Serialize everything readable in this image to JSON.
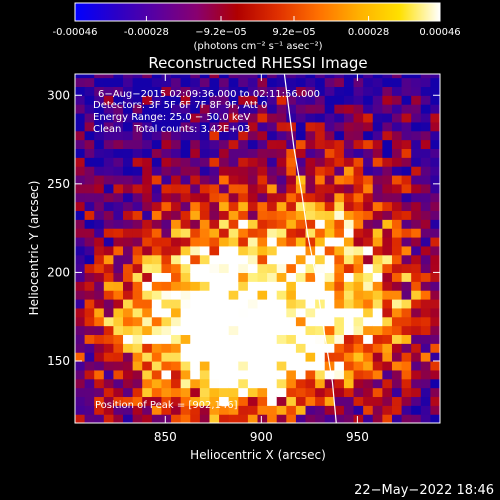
{
  "chart_data": {
    "type": "heatmap",
    "title": "Reconstructed RHESSI Image",
    "xlabel": "Heliocentric X (arcsec)",
    "ylabel": "Heliocentric Y (arcsec)",
    "xlim": [
      803,
      993
    ],
    "ylim": [
      115,
      312
    ],
    "x_ticks": [
      850,
      900,
      950
    ],
    "y_ticks": [
      150,
      200,
      250,
      300
    ],
    "colorbar": {
      "min": -0.00046,
      "max": 0.00046,
      "tick_values": [
        -0.00046,
        -0.00028,
        -9.2e-05,
        9.2e-05,
        0.00028,
        0.00046
      ],
      "tick_labels": [
        "-0.00046",
        "-0.00028",
        "−9.2e−05",
        "9.2e−05",
        "0.00028",
        "0.00046"
      ],
      "unit_label": "(photons cm⁻² s⁻¹ asec⁻²)",
      "colors": [
        "#0000ff",
        "#2a00c8",
        "#5a00a0",
        "#880070",
        "#b00000",
        "#e03000",
        "#ff7000",
        "#ffb000",
        "#ffe000",
        "#ffffff"
      ]
    },
    "annotations": [
      "6−Aug−2015 02:09:36.000 to 02:11:56.000",
      "Detectors: 3F 5F 6F 7F 8F 9F, Att 0",
      "Energy Range: 25.0 − 50.0 keV",
      "Clean    Total counts: 3.42E+03",
      "Position of Peak = [902,146]"
    ],
    "peak": [
      902,
      146
    ],
    "limb": [
      [
        912,
        312
      ],
      [
        914,
        295
      ],
      [
        917,
        270
      ],
      [
        921,
        245
      ],
      [
        924,
        222
      ],
      [
        928,
        200
      ],
      [
        931,
        178
      ],
      [
        934,
        158
      ],
      [
        937,
        138
      ],
      [
        939,
        115
      ]
    ]
  },
  "footer": {
    "date": "22−May−2022 18:46"
  }
}
